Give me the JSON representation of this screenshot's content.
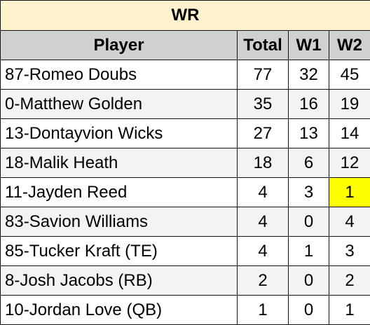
{
  "title": "WR",
  "headers": {
    "player": "Player",
    "total": "Total",
    "w1": "W1",
    "w2": "W2"
  },
  "rows": [
    {
      "player": "87-Romeo Doubs",
      "total": "77",
      "w1": "32",
      "w2": "45"
    },
    {
      "player": "0-Matthew Golden",
      "total": "35",
      "w1": "16",
      "w2": "19"
    },
    {
      "player": "13-Dontayvion Wicks",
      "total": "27",
      "w1": "13",
      "w2": "14"
    },
    {
      "player": "18-Malik Heath",
      "total": "18",
      "w1": "6",
      "w2": "12"
    },
    {
      "player": "11-Jayden Reed",
      "total": "4",
      "w1": "3",
      "w2": "1"
    },
    {
      "player": "83-Savion Williams",
      "total": "4",
      "w1": "0",
      "w2": "4"
    },
    {
      "player": "85-Tucker Kraft (TE)",
      "total": "4",
      "w1": "1",
      "w2": "3"
    },
    {
      "player": "8-Josh Jacobs (RB)",
      "total": "2",
      "w1": "0",
      "w2": "2"
    },
    {
      "player": "10-Jordan Love (QB)",
      "total": "1",
      "w1": "0",
      "w2": "1"
    }
  ],
  "colors": {
    "title_bg": "#fff2cc",
    "header_bg": "#d0d0d0",
    "highlight": "#ffff00"
  }
}
